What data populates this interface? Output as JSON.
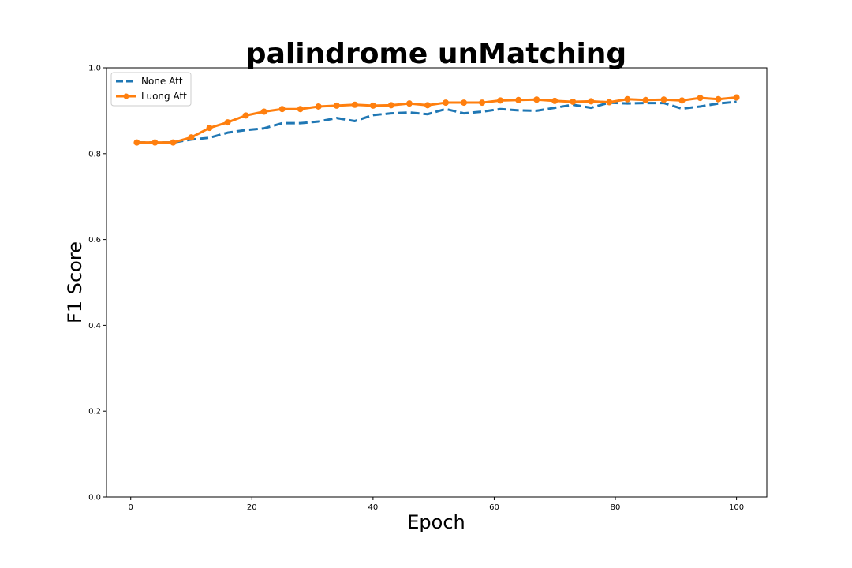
{
  "chart_data": {
    "type": "line",
    "title": "palindrome unMatching",
    "xlabel": "Epoch",
    "ylabel": "F1 Score",
    "xlim": [
      -4,
      105
    ],
    "ylim": [
      0.0,
      1.0
    ],
    "xticks": [
      0,
      20,
      40,
      60,
      80,
      100
    ],
    "yticks": [
      0.0,
      0.2,
      0.4,
      0.6,
      0.8,
      1.0
    ],
    "xtick_labels": [
      "0",
      "20",
      "40",
      "60",
      "80",
      "100"
    ],
    "ytick_labels": [
      "0.0",
      "0.2",
      "0.4",
      "0.6",
      "0.8",
      "1.0"
    ],
    "grid": false,
    "legend_position": "top-left",
    "x": [
      1,
      4,
      7,
      10,
      13,
      16,
      19,
      22,
      25,
      28,
      31,
      34,
      37,
      40,
      43,
      46,
      49,
      52,
      55,
      58,
      61,
      64,
      67,
      70,
      73,
      76,
      79,
      82,
      85,
      88,
      91,
      94,
      97,
      100
    ],
    "series": [
      {
        "name": "None Att",
        "color": "#1f77b4",
        "style": "dashed",
        "markers": false,
        "values": [
          0.826,
          0.826,
          0.826,
          0.833,
          0.837,
          0.849,
          0.855,
          0.859,
          0.871,
          0.871,
          0.875,
          0.883,
          0.876,
          0.89,
          0.894,
          0.896,
          0.892,
          0.904,
          0.894,
          0.898,
          0.904,
          0.901,
          0.9,
          0.907,
          0.914,
          0.907,
          0.919,
          0.917,
          0.918,
          0.918,
          0.905,
          0.91,
          0.917,
          0.921
        ]
      },
      {
        "name": "Luong Att",
        "color": "#ff7f0e",
        "style": "solid",
        "markers": true,
        "values": [
          0.826,
          0.826,
          0.826,
          0.838,
          0.86,
          0.873,
          0.889,
          0.898,
          0.904,
          0.904,
          0.91,
          0.912,
          0.914,
          0.912,
          0.913,
          0.917,
          0.913,
          0.919,
          0.919,
          0.919,
          0.924,
          0.925,
          0.926,
          0.923,
          0.921,
          0.922,
          0.92,
          0.927,
          0.925,
          0.926,
          0.924,
          0.93,
          0.927,
          0.931
        ]
      }
    ]
  }
}
